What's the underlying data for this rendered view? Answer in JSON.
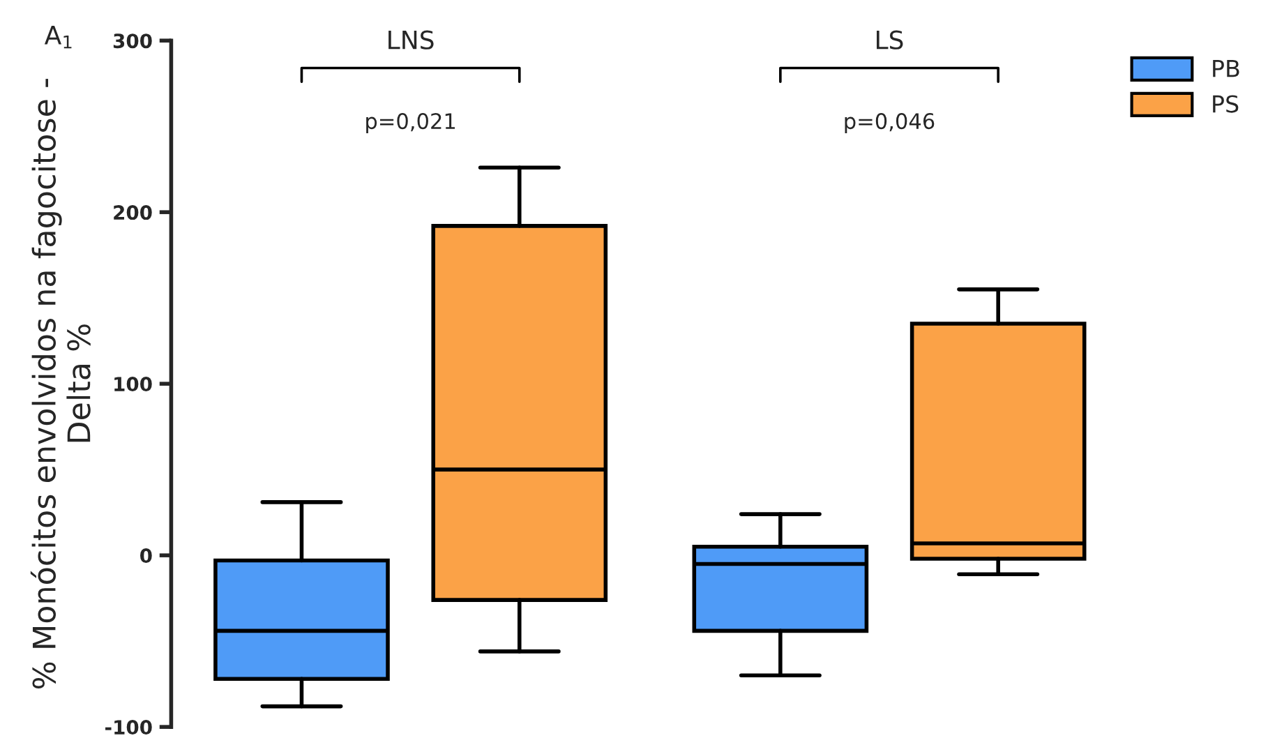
{
  "chart_data": {
    "type": "box",
    "ylabel": "% Monócitos envolvidos na fagocitose -\nDelta %",
    "categories": [
      "LNS",
      "LS"
    ],
    "series": [
      {
        "name": "PB",
        "color": "#4f9bf7",
        "boxes": [
          {
            "low": -88,
            "q1": -72,
            "median": -44,
            "q3": -3,
            "high": 31
          },
          {
            "low": -70,
            "q1": -44,
            "median": -5,
            "q3": 5,
            "high": 24
          }
        ]
      },
      {
        "name": "PS",
        "color": "#fba247",
        "boxes": [
          {
            "low": -56,
            "q1": -26,
            "median": 50,
            "q3": 192,
            "high": 226
          },
          {
            "low": -11,
            "q1": -2,
            "median": 7,
            "q3": 135,
            "high": 155
          }
        ]
      }
    ],
    "ylim": [
      -100,
      300
    ],
    "yticks": [
      -100,
      0,
      100,
      200,
      300
    ],
    "annotations": [
      "A$_{1}$",
      "p=0,021",
      "p=0,046"
    ],
    "grid": false,
    "legend": "top right"
  }
}
